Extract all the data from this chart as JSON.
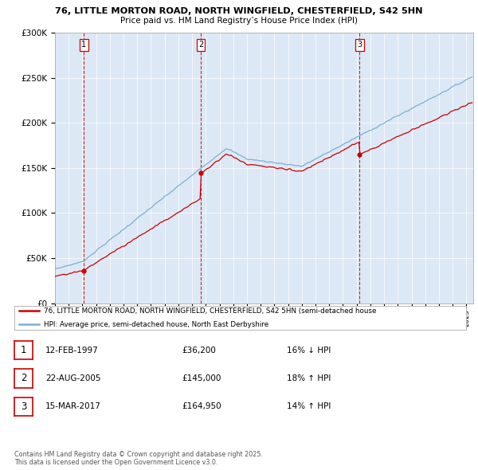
{
  "title_line1": "76, LITTLE MORTON ROAD, NORTH WINGFIELD, CHESTERFIELD, S42 5HN",
  "title_line2": "Price paid vs. HM Land Registry’s House Price Index (HPI)",
  "ylim": [
    0,
    300000
  ],
  "yticks": [
    0,
    50000,
    100000,
    150000,
    200000,
    250000,
    300000
  ],
  "ytick_labels": [
    "£0",
    "£50K",
    "£100K",
    "£150K",
    "£200K",
    "£250K",
    "£300K"
  ],
  "sale_dates_decimal": [
    1997.12,
    2005.64,
    2017.21
  ],
  "sale_prices": [
    36200,
    145000,
    164950
  ],
  "sale_labels": [
    "1",
    "2",
    "3"
  ],
  "legend_line1": "76, LITTLE MORTON ROAD, NORTH WINGFIELD, CHESTERFIELD, S42 5HN (semi-detached house",
  "legend_line2": "HPI: Average price, semi-detached house, North East Derbyshire",
  "table_rows": [
    {
      "num": "1",
      "date": "12-FEB-1997",
      "price": "£36,200",
      "hpi": "16% ↓ HPI"
    },
    {
      "num": "2",
      "date": "22-AUG-2005",
      "price": "£145,000",
      "hpi": "18% ↑ HPI"
    },
    {
      "num": "3",
      "date": "15-MAR-2017",
      "price": "£164,950",
      "hpi": "14% ↑ HPI"
    }
  ],
  "footnote_line1": "Contains HM Land Registry data © Crown copyright and database right 2025.",
  "footnote_line2": "This data is licensed under the Open Government Licence v3.0.",
  "line_color_red": "#cc0000",
  "line_color_blue": "#7ab0d4",
  "vline_color": "#cc0000",
  "bg_color": "#ffffff",
  "chart_bg_color": "#dce8f5",
  "grid_color": "#ffffff"
}
